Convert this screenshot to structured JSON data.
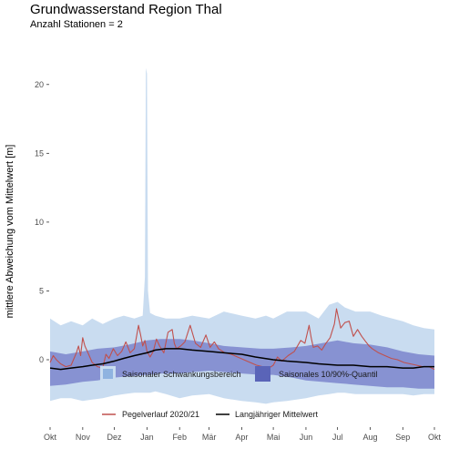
{
  "chart_data": {
    "type": "line",
    "title": "Grundwasserstand Region Thal",
    "subtitle": "Anzahl Stationen = 2",
    "xlabel": "",
    "ylabel": "mittlere Abweichung vom Mittelwert [m]",
    "xlim": [
      0,
      365
    ],
    "ylim": [
      -4.5,
      22.5
    ],
    "x_ticks": [
      {
        "pos": 0,
        "label": "Okt"
      },
      {
        "pos": 31,
        "label": "Nov"
      },
      {
        "pos": 61,
        "label": "Dez"
      },
      {
        "pos": 92,
        "label": "Jan"
      },
      {
        "pos": 123,
        "label": "Feb"
      },
      {
        "pos": 151,
        "label": "Mär"
      },
      {
        "pos": 182,
        "label": "Apr"
      },
      {
        "pos": 212,
        "label": "Mai"
      },
      {
        "pos": 243,
        "label": "Jun"
      },
      {
        "pos": 273,
        "label": "Jul"
      },
      {
        "pos": 304,
        "label": "Aug"
      },
      {
        "pos": 335,
        "label": "Sep"
      },
      {
        "pos": 365,
        "label": "Okt"
      }
    ],
    "y_ticks": [
      0,
      5,
      10,
      15,
      20
    ],
    "grid": false,
    "legend_position": "bottom",
    "legend": {
      "band_outer_label": "Saisonaler Schwankungsbereich",
      "band_inner_label": "Saisonales 10/90%-Quantil",
      "line_current_label": "Pegelverlauf  2020/21",
      "line_mean_label": "Langjähriger Mittelwert"
    },
    "colors": {
      "band_outer": "#c9dcf0",
      "band_inner": "#7b85cc",
      "line_current": "#c0504d",
      "line_mean": "#000000"
    },
    "series": [
      {
        "name": "Saisonaler Schwankungsbereich",
        "kind": "band",
        "x": [
          0,
          10,
          20,
          31,
          40,
          50,
          61,
          70,
          80,
          88,
          90,
          91,
          92,
          93,
          95,
          100,
          110,
          123,
          135,
          151,
          165,
          182,
          195,
          205,
          212,
          225,
          243,
          255,
          265,
          273,
          280,
          290,
          304,
          315,
          325,
          335,
          345,
          355,
          365
        ],
        "upper": [
          3.0,
          2.5,
          2.8,
          2.5,
          3.0,
          2.6,
          3.0,
          3.2,
          3.0,
          3.2,
          6.0,
          21.2,
          20.8,
          5.0,
          3.4,
          3.2,
          3.0,
          3.0,
          3.2,
          3.0,
          3.5,
          3.2,
          3.0,
          3.2,
          3.0,
          3.5,
          3.5,
          3.0,
          4.0,
          4.2,
          3.8,
          3.5,
          3.5,
          3.2,
          3.0,
          2.8,
          2.5,
          2.3,
          2.2
        ],
        "lower": [
          -3.0,
          -2.8,
          -2.8,
          -3.0,
          -2.9,
          -2.8,
          -2.6,
          -2.5,
          -2.4,
          -2.4,
          -2.4,
          -2.4,
          -2.4,
          -2.4,
          -2.4,
          -2.3,
          -2.5,
          -2.8,
          -2.6,
          -2.5,
          -2.8,
          -3.0,
          -3.1,
          -3.2,
          -3.1,
          -3.0,
          -2.8,
          -2.6,
          -2.5,
          -2.4,
          -2.4,
          -2.5,
          -2.5,
          -2.5,
          -2.5,
          -2.5,
          -2.6,
          -2.5,
          -2.5
        ]
      },
      {
        "name": "Saisonales 10/90%-Quantil",
        "kind": "band",
        "x": [
          0,
          15,
          31,
          45,
          61,
          75,
          92,
          105,
          123,
          135,
          151,
          165,
          182,
          200,
          212,
          230,
          243,
          258,
          273,
          288,
          304,
          320,
          335,
          350,
          365
        ],
        "upper": [
          0.6,
          0.4,
          0.6,
          0.8,
          0.9,
          1.1,
          1.4,
          1.5,
          1.5,
          1.4,
          1.2,
          1.0,
          0.9,
          0.8,
          0.8,
          0.9,
          1.0,
          1.2,
          1.4,
          1.2,
          1.1,
          0.9,
          0.6,
          0.4,
          0.3
        ],
        "lower": [
          -1.9,
          -1.8,
          -1.6,
          -1.5,
          -1.3,
          -1.2,
          -1.1,
          -1.0,
          -1.0,
          -0.9,
          -0.8,
          -0.9,
          -1.0,
          -1.1,
          -1.1,
          -1.3,
          -1.5,
          -1.6,
          -1.7,
          -1.8,
          -1.9,
          -2.0,
          -2.0,
          -2.1,
          -2.1
        ]
      },
      {
        "name": "Pegelverlauf  2020/21",
        "kind": "line",
        "x": [
          0,
          3,
          6,
          10,
          15,
          20,
          25,
          27,
          29,
          31,
          33,
          36,
          40,
          45,
          50,
          53,
          56,
          60,
          64,
          68,
          72,
          76,
          80,
          84,
          86,
          88,
          90,
          92,
          95,
          98,
          101,
          104,
          108,
          112,
          116,
          118,
          120,
          124,
          128,
          133,
          138,
          143,
          148,
          152,
          156,
          160,
          166,
          172,
          178,
          184,
          190,
          196,
          202,
          208,
          212,
          216,
          220,
          226,
          232,
          238,
          242,
          246,
          248,
          250,
          254,
          258,
          262,
          266,
          270,
          272,
          276,
          280,
          284,
          288,
          292,
          296,
          300,
          303,
          306,
          312,
          318,
          324,
          330,
          336,
          342,
          348,
          354,
          360,
          365
        ],
        "y": [
          -0.2,
          0.3,
          0.0,
          -0.3,
          -0.5,
          -0.4,
          0.5,
          1.0,
          0.3,
          1.6,
          1.0,
          0.5,
          -0.2,
          -0.5,
          -0.6,
          0.4,
          0.1,
          0.8,
          0.3,
          0.6,
          1.3,
          0.5,
          0.8,
          2.5,
          1.8,
          1.0,
          1.4,
          0.6,
          0.2,
          0.6,
          1.5,
          1.0,
          0.5,
          2.0,
          2.2,
          1.2,
          0.8,
          1.0,
          1.3,
          2.5,
          1.2,
          0.9,
          1.8,
          0.9,
          1.3,
          0.8,
          0.5,
          0.4,
          0.2,
          0.0,
          -0.2,
          -0.4,
          -0.5,
          -0.6,
          -0.4,
          0.2,
          -0.1,
          0.3,
          0.6,
          1.4,
          1.2,
          2.5,
          1.6,
          0.9,
          1.0,
          0.7,
          1.2,
          1.6,
          2.6,
          3.7,
          2.3,
          2.7,
          2.8,
          1.7,
          2.2,
          1.7,
          1.3,
          1.0,
          0.8,
          0.5,
          0.3,
          0.1,
          0.0,
          -0.2,
          -0.3,
          -0.4,
          -0.5,
          -0.5,
          -0.7
        ]
      },
      {
        "name": "Langjähriger Mittelwert",
        "kind": "line",
        "x": [
          0,
          10,
          20,
          31,
          40,
          50,
          61,
          70,
          80,
          92,
          100,
          110,
          123,
          135,
          151,
          165,
          182,
          195,
          212,
          225,
          243,
          255,
          273,
          288,
          304,
          320,
          335,
          345,
          355,
          365
        ],
        "y": [
          -0.6,
          -0.7,
          -0.6,
          -0.5,
          -0.4,
          -0.3,
          -0.1,
          0.1,
          0.3,
          0.5,
          0.7,
          0.8,
          0.8,
          0.7,
          0.6,
          0.5,
          0.4,
          0.2,
          0.0,
          -0.1,
          -0.2,
          -0.3,
          -0.4,
          -0.4,
          -0.5,
          -0.5,
          -0.6,
          -0.6,
          -0.5,
          -0.5
        ]
      }
    ]
  }
}
